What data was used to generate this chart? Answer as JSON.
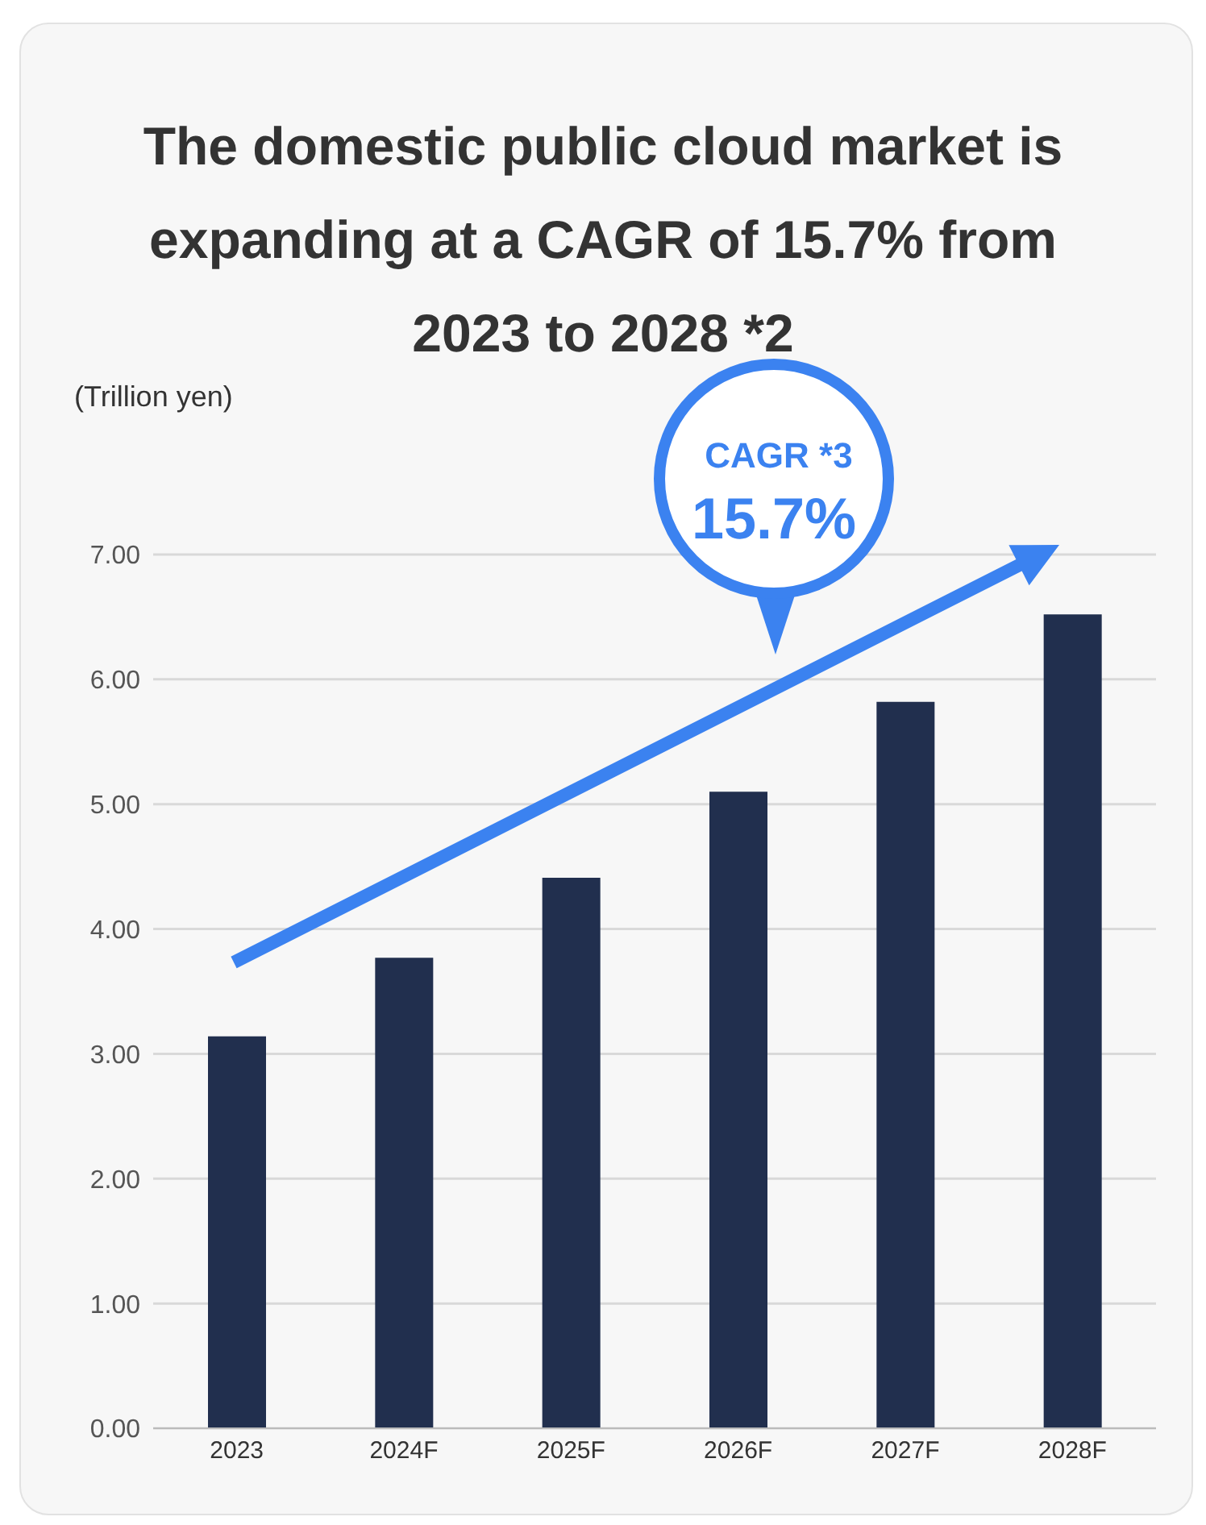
{
  "chart_data": {
    "type": "bar",
    "title": "The domestic public cloud market is expanding at a CAGR of 15.7% from 2023 to 2028 *2",
    "ylabel": "(Trillion yen)",
    "categories": [
      "2023",
      "2024F",
      "2025F",
      "2026F",
      "2027F",
      "2028F"
    ],
    "values": [
      3.14,
      3.77,
      4.41,
      5.1,
      5.82,
      6.52
    ],
    "color": "#212f4e",
    "ylim": [
      0,
      7
    ],
    "yticks": [
      {
        "value": 0,
        "label": "0.00"
      },
      {
        "value": 1,
        "label": "1.00"
      },
      {
        "value": 2,
        "label": "2.00"
      },
      {
        "value": 3,
        "label": "3.00"
      },
      {
        "value": 4,
        "label": "4.00"
      },
      {
        "value": 5,
        "label": "5.00"
      },
      {
        "value": 6,
        "label": "6.00"
      },
      {
        "value": 7,
        "label": "7.00"
      }
    ],
    "grid": "y",
    "annotations": [
      "CAGR *3",
      "15.7%"
    ]
  }
}
